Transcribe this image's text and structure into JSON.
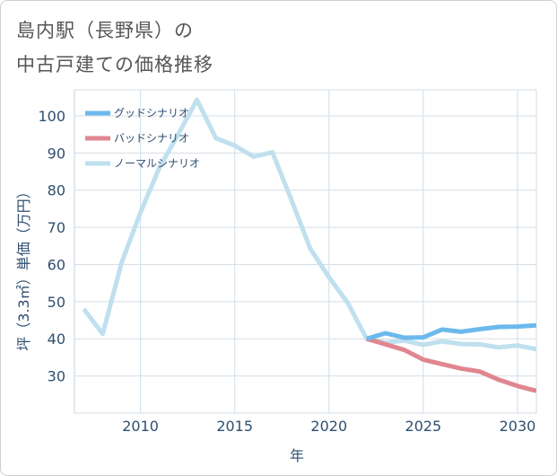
{
  "title_line1": "島内駅（長野県）の",
  "title_line2": "中古戸建ての価格推移",
  "chart_data": {
    "type": "line",
    "xlabel": "年",
    "ylabel": "坪（3.3㎡）単価（万円）",
    "xlim": [
      2006.5,
      2031
    ],
    "ylim": [
      20,
      107
    ],
    "xticks": [
      2010,
      2015,
      2020,
      2025,
      2030
    ],
    "yticks": [
      30,
      40,
      50,
      60,
      70,
      80,
      90,
      100
    ],
    "legend_position": "top-left",
    "series": [
      {
        "name": "グッドシナリオ",
        "color": "#6cb9ec",
        "x": [
          2022,
          2023,
          2024,
          2025,
          2026,
          2027,
          2028,
          2029,
          2030,
          2031
        ],
        "values": [
          40.0,
          41.5,
          40.3,
          40.4,
          42.5,
          41.9,
          42.6,
          43.2,
          43.3,
          43.6
        ]
      },
      {
        "name": "バッドシナリオ",
        "color": "#e0868f",
        "x": [
          2022,
          2023,
          2024,
          2025,
          2026,
          2027,
          2028,
          2029,
          2030,
          2031
        ],
        "values": [
          40.0,
          38.5,
          37.0,
          34.4,
          33.2,
          32.0,
          31.2,
          29.0,
          27.3,
          26.0
        ]
      },
      {
        "name": "ノーマルシナリオ",
        "color": "#bfe0ee",
        "x": [
          2007,
          2008,
          2009,
          2010,
          2011,
          2012,
          2013,
          2014,
          2015,
          2016,
          2017,
          2018,
          2019,
          2020,
          2021,
          2022,
          2023,
          2024,
          2025,
          2026,
          2027,
          2028,
          2029,
          2030,
          2031
        ],
        "values": [
          48.0,
          41.3,
          60.5,
          74.0,
          86.0,
          95.0,
          104.3,
          94.0,
          92.0,
          89.0,
          90.2,
          77.5,
          64.3,
          56.6,
          49.6,
          40.0,
          39.0,
          39.5,
          38.4,
          39.3,
          38.6,
          38.5,
          37.7,
          38.2,
          37.2
        ]
      }
    ]
  }
}
